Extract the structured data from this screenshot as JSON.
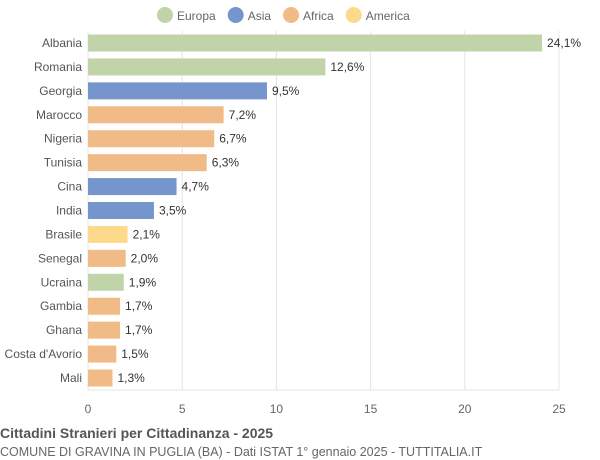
{
  "chart_data": {
    "type": "bar",
    "orientation": "horizontal",
    "title": "Cittadini Stranieri per Cittadinanza - 2025",
    "subtitle": "COMUNE DI GRAVINA IN PUGLIA (BA) - Dati ISTAT 1° gennaio 2025 - TUTTITALIA.IT",
    "legend_position": "top",
    "legend": [
      {
        "name": "Europa",
        "color": "#c1d3a8"
      },
      {
        "name": "Asia",
        "color": "#7695cc"
      },
      {
        "name": "Africa",
        "color": "#f0bb87"
      },
      {
        "name": "America",
        "color": "#fdd98b"
      }
    ],
    "categories": [
      "Albania",
      "Romania",
      "Georgia",
      "Marocco",
      "Nigeria",
      "Tunisia",
      "Cina",
      "India",
      "Brasile",
      "Senegal",
      "Ucraina",
      "Gambia",
      "Ghana",
      "Costa d'Avorio",
      "Mali"
    ],
    "values": [
      24.1,
      12.6,
      9.5,
      7.2,
      6.7,
      6.3,
      4.7,
      3.5,
      2.1,
      2.0,
      1.9,
      1.7,
      1.7,
      1.5,
      1.3
    ],
    "labels": [
      "24,1%",
      "12,6%",
      "9,5%",
      "7,2%",
      "6,7%",
      "6,3%",
      "4,7%",
      "3,5%",
      "2,1%",
      "2,0%",
      "1,9%",
      "1,7%",
      "1,7%",
      "1,5%",
      "1,3%"
    ],
    "groups": [
      "Europa",
      "Europa",
      "Asia",
      "Africa",
      "Africa",
      "Africa",
      "Asia",
      "Asia",
      "America",
      "Africa",
      "Europa",
      "Africa",
      "Africa",
      "Africa",
      "Africa"
    ],
    "xlim": [
      0,
      25
    ],
    "xticks": [
      "0",
      "5",
      "10",
      "15",
      "20",
      "25"
    ],
    "grid": true
  }
}
